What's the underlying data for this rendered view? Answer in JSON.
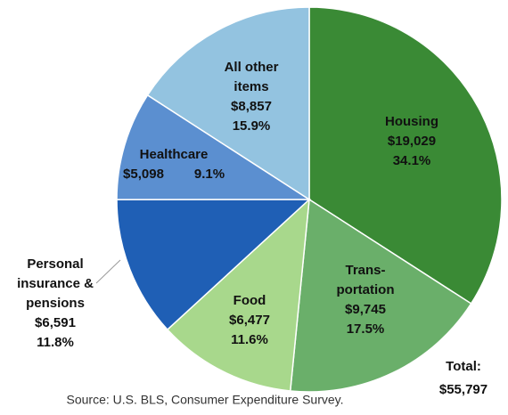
{
  "chart_data": {
    "type": "pie",
    "categories": [
      [
        "Housing"
      ],
      [
        "Trans-",
        "portation"
      ],
      [
        "Food"
      ],
      [
        "Personal",
        "insurance &",
        "pensions"
      ],
      [
        "Healthcare"
      ],
      [
        "All other",
        "items"
      ]
    ],
    "values": [
      19029,
      9745,
      6477,
      6591,
      5098,
      8857
    ],
    "value_labels": [
      "$19,029",
      "$9,745",
      "$6,477",
      "$6,591",
      "$5,098",
      "$8,857"
    ],
    "percents": [
      34.1,
      17.5,
      11.6,
      11.8,
      9.1,
      15.9
    ],
    "percent_labels": [
      "34.1%",
      "17.5%",
      "11.6%",
      "11.8%",
      "9.1%",
      "15.9%"
    ],
    "colors": [
      "#3a8a35",
      "#6aaf6a",
      "#a8d88c",
      "#1f5fb5",
      "#5b8fd0",
      "#93c3e0"
    ],
    "total": {
      "label": "Total:",
      "value": 55797,
      "value_label": "$55,797"
    },
    "source": "Source: U.S. BLS, Consumer Expenditure Survey."
  }
}
